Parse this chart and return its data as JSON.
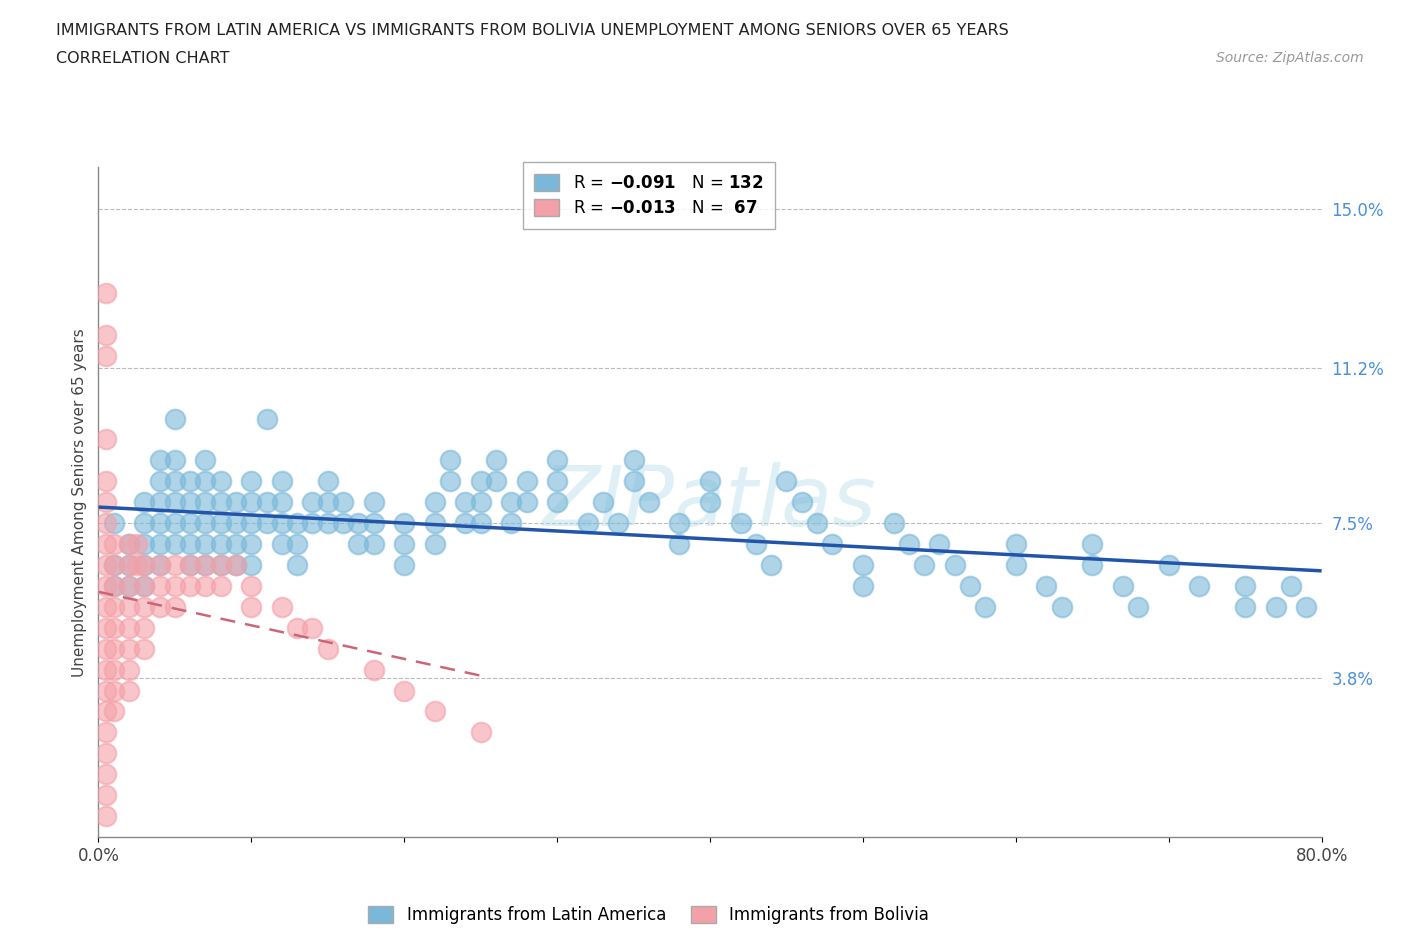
{
  "title_line1": "IMMIGRANTS FROM LATIN AMERICA VS IMMIGRANTS FROM BOLIVIA UNEMPLOYMENT AMONG SENIORS OVER 65 YEARS",
  "title_line2": "CORRELATION CHART",
  "source_text": "Source: ZipAtlas.com",
  "ylabel": "Unemployment Among Seniors over 65 years",
  "xlim": [
    0.0,
    0.8
  ],
  "ylim": [
    0.0,
    0.16
  ],
  "ytick_vals": [
    0.038,
    0.075,
    0.112,
    0.15
  ],
  "ytick_labels": [
    "3.8%",
    "7.5%",
    "11.2%",
    "15.0%"
  ],
  "latin_america_color": "#7ab8d9",
  "bolivia_color": "#f4a0a8",
  "watermark_text": "ZIPatlas",
  "la_trend_color": "#2255aa",
  "bo_trend_color": "#cc6677",
  "latin_america_points": [
    [
      0.01,
      0.075
    ],
    [
      0.01,
      0.065
    ],
    [
      0.01,
      0.06
    ],
    [
      0.02,
      0.07
    ],
    [
      0.02,
      0.065
    ],
    [
      0.02,
      0.06
    ],
    [
      0.03,
      0.08
    ],
    [
      0.03,
      0.075
    ],
    [
      0.03,
      0.07
    ],
    [
      0.03,
      0.065
    ],
    [
      0.03,
      0.06
    ],
    [
      0.04,
      0.09
    ],
    [
      0.04,
      0.085
    ],
    [
      0.04,
      0.08
    ],
    [
      0.04,
      0.075
    ],
    [
      0.04,
      0.07
    ],
    [
      0.04,
      0.065
    ],
    [
      0.05,
      0.1
    ],
    [
      0.05,
      0.09
    ],
    [
      0.05,
      0.085
    ],
    [
      0.05,
      0.08
    ],
    [
      0.05,
      0.075
    ],
    [
      0.05,
      0.07
    ],
    [
      0.06,
      0.085
    ],
    [
      0.06,
      0.08
    ],
    [
      0.06,
      0.075
    ],
    [
      0.06,
      0.07
    ],
    [
      0.06,
      0.065
    ],
    [
      0.07,
      0.09
    ],
    [
      0.07,
      0.085
    ],
    [
      0.07,
      0.08
    ],
    [
      0.07,
      0.075
    ],
    [
      0.07,
      0.07
    ],
    [
      0.07,
      0.065
    ],
    [
      0.08,
      0.085
    ],
    [
      0.08,
      0.08
    ],
    [
      0.08,
      0.075
    ],
    [
      0.08,
      0.07
    ],
    [
      0.08,
      0.065
    ],
    [
      0.09,
      0.08
    ],
    [
      0.09,
      0.075
    ],
    [
      0.09,
      0.07
    ],
    [
      0.09,
      0.065
    ],
    [
      0.1,
      0.085
    ],
    [
      0.1,
      0.08
    ],
    [
      0.1,
      0.075
    ],
    [
      0.1,
      0.07
    ],
    [
      0.1,
      0.065
    ],
    [
      0.11,
      0.1
    ],
    [
      0.11,
      0.08
    ],
    [
      0.11,
      0.075
    ],
    [
      0.12,
      0.085
    ],
    [
      0.12,
      0.08
    ],
    [
      0.12,
      0.075
    ],
    [
      0.12,
      0.07
    ],
    [
      0.13,
      0.075
    ],
    [
      0.13,
      0.07
    ],
    [
      0.13,
      0.065
    ],
    [
      0.14,
      0.08
    ],
    [
      0.14,
      0.075
    ],
    [
      0.15,
      0.085
    ],
    [
      0.15,
      0.08
    ],
    [
      0.15,
      0.075
    ],
    [
      0.16,
      0.08
    ],
    [
      0.16,
      0.075
    ],
    [
      0.17,
      0.075
    ],
    [
      0.17,
      0.07
    ],
    [
      0.18,
      0.08
    ],
    [
      0.18,
      0.075
    ],
    [
      0.18,
      0.07
    ],
    [
      0.2,
      0.075
    ],
    [
      0.2,
      0.07
    ],
    [
      0.2,
      0.065
    ],
    [
      0.22,
      0.08
    ],
    [
      0.22,
      0.075
    ],
    [
      0.22,
      0.07
    ],
    [
      0.23,
      0.09
    ],
    [
      0.23,
      0.085
    ],
    [
      0.24,
      0.08
    ],
    [
      0.24,
      0.075
    ],
    [
      0.25,
      0.085
    ],
    [
      0.25,
      0.08
    ],
    [
      0.25,
      0.075
    ],
    [
      0.26,
      0.09
    ],
    [
      0.26,
      0.085
    ],
    [
      0.27,
      0.08
    ],
    [
      0.27,
      0.075
    ],
    [
      0.28,
      0.085
    ],
    [
      0.28,
      0.08
    ],
    [
      0.3,
      0.09
    ],
    [
      0.3,
      0.085
    ],
    [
      0.3,
      0.08
    ],
    [
      0.32,
      0.075
    ],
    [
      0.33,
      0.08
    ],
    [
      0.34,
      0.075
    ],
    [
      0.35,
      0.09
    ],
    [
      0.35,
      0.085
    ],
    [
      0.36,
      0.08
    ],
    [
      0.38,
      0.075
    ],
    [
      0.38,
      0.07
    ],
    [
      0.4,
      0.085
    ],
    [
      0.4,
      0.08
    ],
    [
      0.42,
      0.075
    ],
    [
      0.43,
      0.07
    ],
    [
      0.44,
      0.065
    ],
    [
      0.45,
      0.085
    ],
    [
      0.46,
      0.08
    ],
    [
      0.47,
      0.075
    ],
    [
      0.48,
      0.07
    ],
    [
      0.5,
      0.065
    ],
    [
      0.5,
      0.06
    ],
    [
      0.52,
      0.075
    ],
    [
      0.53,
      0.07
    ],
    [
      0.54,
      0.065
    ],
    [
      0.55,
      0.07
    ],
    [
      0.56,
      0.065
    ],
    [
      0.57,
      0.06
    ],
    [
      0.58,
      0.055
    ],
    [
      0.6,
      0.07
    ],
    [
      0.6,
      0.065
    ],
    [
      0.62,
      0.06
    ],
    [
      0.63,
      0.055
    ],
    [
      0.65,
      0.07
    ],
    [
      0.65,
      0.065
    ],
    [
      0.67,
      0.06
    ],
    [
      0.68,
      0.055
    ],
    [
      0.7,
      0.065
    ],
    [
      0.72,
      0.06
    ],
    [
      0.75,
      0.055
    ],
    [
      0.75,
      0.06
    ],
    [
      0.77,
      0.055
    ],
    [
      0.78,
      0.06
    ],
    [
      0.79,
      0.055
    ]
  ],
  "bolivia_points": [
    [
      0.005,
      0.13
    ],
    [
      0.005,
      0.12
    ],
    [
      0.005,
      0.115
    ],
    [
      0.005,
      0.095
    ],
    [
      0.005,
      0.085
    ],
    [
      0.005,
      0.08
    ],
    [
      0.005,
      0.075
    ],
    [
      0.005,
      0.07
    ],
    [
      0.005,
      0.065
    ],
    [
      0.005,
      0.06
    ],
    [
      0.005,
      0.055
    ],
    [
      0.005,
      0.05
    ],
    [
      0.005,
      0.045
    ],
    [
      0.005,
      0.04
    ],
    [
      0.005,
      0.035
    ],
    [
      0.005,
      0.03
    ],
    [
      0.005,
      0.025
    ],
    [
      0.005,
      0.02
    ],
    [
      0.005,
      0.015
    ],
    [
      0.005,
      0.01
    ],
    [
      0.005,
      0.005
    ],
    [
      0.01,
      0.07
    ],
    [
      0.01,
      0.065
    ],
    [
      0.01,
      0.06
    ],
    [
      0.01,
      0.055
    ],
    [
      0.01,
      0.05
    ],
    [
      0.01,
      0.045
    ],
    [
      0.01,
      0.04
    ],
    [
      0.01,
      0.035
    ],
    [
      0.01,
      0.03
    ],
    [
      0.02,
      0.07
    ],
    [
      0.02,
      0.065
    ],
    [
      0.02,
      0.06
    ],
    [
      0.02,
      0.055
    ],
    [
      0.02,
      0.05
    ],
    [
      0.02,
      0.045
    ],
    [
      0.02,
      0.04
    ],
    [
      0.02,
      0.035
    ],
    [
      0.025,
      0.07
    ],
    [
      0.025,
      0.065
    ],
    [
      0.03,
      0.065
    ],
    [
      0.03,
      0.06
    ],
    [
      0.03,
      0.055
    ],
    [
      0.03,
      0.05
    ],
    [
      0.03,
      0.045
    ],
    [
      0.04,
      0.065
    ],
    [
      0.04,
      0.06
    ],
    [
      0.04,
      0.055
    ],
    [
      0.05,
      0.065
    ],
    [
      0.05,
      0.06
    ],
    [
      0.05,
      0.055
    ],
    [
      0.06,
      0.065
    ],
    [
      0.06,
      0.06
    ],
    [
      0.07,
      0.065
    ],
    [
      0.07,
      0.06
    ],
    [
      0.08,
      0.065
    ],
    [
      0.08,
      0.06
    ],
    [
      0.09,
      0.065
    ],
    [
      0.1,
      0.06
    ],
    [
      0.1,
      0.055
    ],
    [
      0.12,
      0.055
    ],
    [
      0.13,
      0.05
    ],
    [
      0.14,
      0.05
    ],
    [
      0.15,
      0.045
    ],
    [
      0.18,
      0.04
    ],
    [
      0.2,
      0.035
    ],
    [
      0.22,
      0.03
    ],
    [
      0.25,
      0.025
    ]
  ]
}
